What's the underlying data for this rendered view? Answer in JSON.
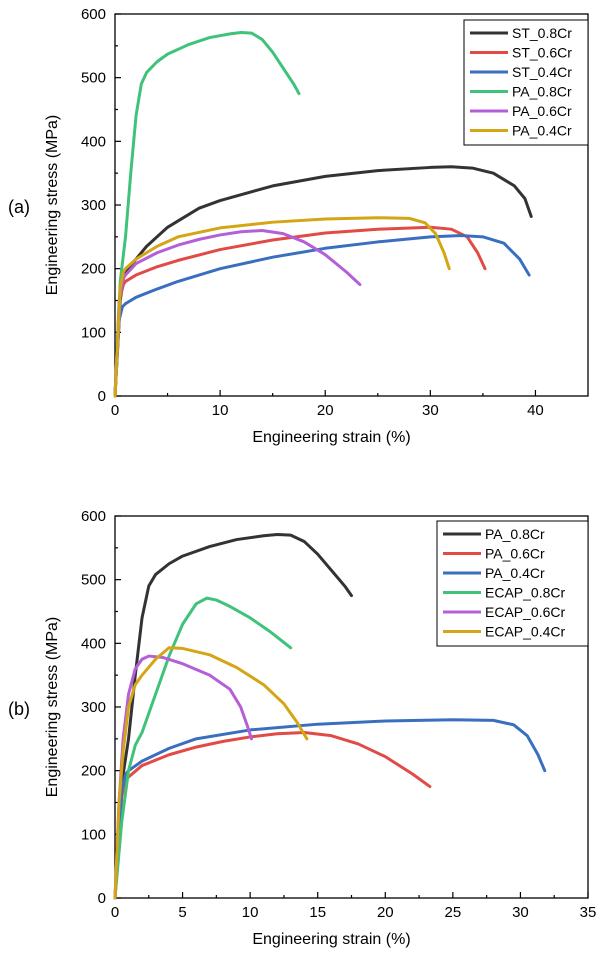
{
  "chart_data": [
    {
      "type": "line",
      "panel_label": "(a)",
      "xlabel": "Engineering strain (%)",
      "ylabel": "Engineering stress (MPa)",
      "xlim": [
        0,
        45
      ],
      "ylim": [
        0,
        600
      ],
      "xticks": [
        0,
        10,
        20,
        30,
        40
      ],
      "yticks": [
        0,
        100,
        200,
        300,
        400,
        500,
        600
      ],
      "legend": "top-right",
      "series": [
        {
          "name": "ST_0.8Cr",
          "color": "#333333",
          "x": [
            0,
            0.5,
            0.8,
            1,
            1.5,
            2,
            3,
            5,
            8,
            10,
            15,
            20,
            25,
            30,
            32,
            34,
            36,
            38,
            39,
            39.6
          ],
          "y": [
            0,
            150,
            185,
            195,
            205,
            215,
            235,
            265,
            295,
            307,
            330,
            345,
            354,
            359,
            360,
            358,
            350,
            330,
            310,
            282
          ]
        },
        {
          "name": "ST_0.6Cr",
          "color": "#e14a45",
          "x": [
            0,
            0.4,
            0.8,
            1,
            2,
            4,
            6,
            10,
            15,
            20,
            25,
            30,
            32,
            33.5,
            34.5,
            35.2
          ],
          "y": [
            0,
            150,
            175,
            180,
            190,
            203,
            213,
            230,
            245,
            256,
            262,
            265,
            262,
            250,
            225,
            200
          ]
        },
        {
          "name": "ST_0.4Cr",
          "color": "#3a6fbf",
          "x": [
            0,
            0.4,
            0.7,
            1,
            2,
            4,
            6,
            10,
            15,
            20,
            25,
            30,
            33,
            35,
            37,
            38.5,
            39.4
          ],
          "y": [
            0,
            120,
            140,
            145,
            155,
            168,
            180,
            200,
            218,
            232,
            242,
            250,
            252,
            250,
            240,
            215,
            190
          ]
        },
        {
          "name": "PA_0.8Cr",
          "color": "#3fc27a",
          "x": [
            0,
            0.5,
            1,
            1.5,
            2,
            2.5,
            3,
            4,
            5,
            7,
            9,
            11,
            12,
            13,
            14,
            15,
            16,
            17,
            17.5
          ],
          "y": [
            0,
            180,
            250,
            350,
            440,
            490,
            508,
            525,
            537,
            552,
            563,
            569,
            571,
            570,
            560,
            540,
            515,
            490,
            475
          ]
        },
        {
          "name": "PA_0.6Cr",
          "color": "#b45fd8",
          "x": [
            0,
            0.5,
            0.8,
            1,
            2,
            4,
            6,
            8,
            10,
            12,
            14,
            16,
            18,
            20,
            22,
            23.3
          ],
          "y": [
            0,
            160,
            185,
            190,
            208,
            225,
            237,
            246,
            253,
            258,
            260,
            255,
            242,
            222,
            195,
            175
          ]
        },
        {
          "name": "PA_0.4Cr",
          "color": "#d4a514",
          "x": [
            0,
            0.5,
            0.8,
            1,
            2,
            4,
            6,
            10,
            15,
            20,
            25,
            28,
            29.5,
            30.5,
            31.3,
            31.8
          ],
          "y": [
            0,
            170,
            195,
            200,
            215,
            235,
            250,
            264,
            273,
            278,
            280,
            279,
            272,
            255,
            225,
            200
          ]
        }
      ]
    },
    {
      "type": "line",
      "panel_label": "(b)",
      "xlabel": "Engineering strain (%)",
      "ylabel": "Engineering stress (MPa)",
      "xlim": [
        0,
        35
      ],
      "ylim": [
        0,
        600
      ],
      "xticks": [
        0,
        5,
        10,
        15,
        20,
        25,
        30,
        35
      ],
      "yticks": [
        0,
        100,
        200,
        300,
        400,
        500,
        600
      ],
      "legend": "top-right",
      "series": [
        {
          "name": "PA_0.8Cr",
          "color": "#333333",
          "x": [
            0,
            0.5,
            1,
            1.5,
            2,
            2.5,
            3,
            4,
            5,
            7,
            9,
            11,
            12,
            13,
            14,
            15,
            16,
            17,
            17.5
          ],
          "y": [
            0,
            180,
            250,
            350,
            440,
            490,
            508,
            525,
            537,
            552,
            563,
            569,
            571,
            570,
            560,
            540,
            515,
            490,
            475
          ]
        },
        {
          "name": "PA_0.6Cr",
          "color": "#e14a45",
          "x": [
            0,
            0.5,
            0.8,
            1,
            2,
            4,
            6,
            8,
            10,
            12,
            14,
            16,
            18,
            20,
            22,
            23.3
          ],
          "y": [
            0,
            160,
            185,
            190,
            208,
            225,
            237,
            246,
            253,
            258,
            260,
            255,
            242,
            222,
            195,
            175
          ]
        },
        {
          "name": "PA_0.4Cr",
          "color": "#3a6fbf",
          "x": [
            0,
            0.5,
            0.8,
            1,
            2,
            4,
            6,
            10,
            15,
            20,
            25,
            28,
            29.5,
            30.5,
            31.3,
            31.8
          ],
          "y": [
            0,
            170,
            195,
            200,
            215,
            235,
            250,
            264,
            273,
            278,
            280,
            279,
            272,
            255,
            225,
            200
          ]
        },
        {
          "name": "ECAP_0.8Cr",
          "color": "#3fc27a",
          "x": [
            0,
            0.5,
            1,
            1.5,
            2,
            3,
            4,
            5,
            6,
            6.8,
            7.5,
            8.5,
            10,
            11.5,
            13
          ],
          "y": [
            0,
            120,
            200,
            240,
            260,
            320,
            380,
            430,
            462,
            471,
            468,
            458,
            440,
            418,
            393
          ]
        },
        {
          "name": "ECAP_0.6Cr",
          "color": "#b45fd8",
          "x": [
            0,
            0.3,
            0.6,
            1,
            1.5,
            2,
            2.5,
            3.5,
            5,
            7,
            8.5,
            9.3,
            9.8,
            10.1
          ],
          "y": [
            0,
            150,
            250,
            320,
            360,
            375,
            380,
            378,
            368,
            350,
            328,
            300,
            270,
            250
          ]
        },
        {
          "name": "ECAP_0.4Cr",
          "color": "#d4a514",
          "x": [
            0,
            0.3,
            0.6,
            1,
            1.5,
            2,
            3,
            4,
            5,
            7,
            9,
            11,
            12.5,
            13.5,
            14.2
          ],
          "y": [
            0,
            150,
            230,
            300,
            335,
            350,
            375,
            393,
            392,
            382,
            362,
            335,
            305,
            275,
            250
          ]
        }
      ]
    }
  ]
}
